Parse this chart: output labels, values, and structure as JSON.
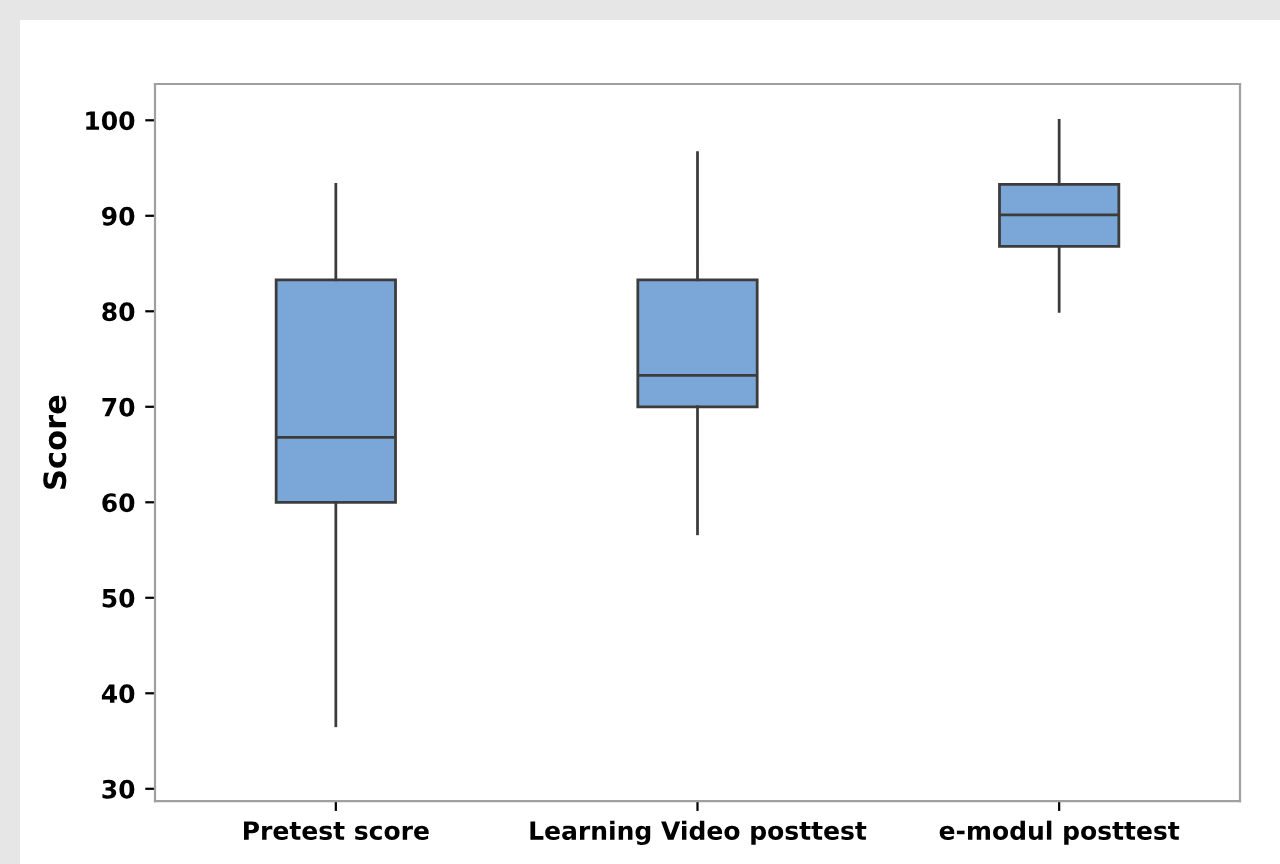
{
  "chart_data": {
    "type": "box",
    "ylabel": "Score",
    "categories": [
      "Pretest score",
      "Learning Video posttest",
      "e-modul posttest"
    ],
    "color": "#7ba7d8",
    "boxes": [
      {
        "low": 36.6,
        "q1": 60,
        "median": 66.8,
        "q3": 83.3,
        "high": 93.3
      },
      {
        "low": 56.7,
        "q1": 70,
        "median": 73.3,
        "q3": 83.3,
        "high": 96.6
      },
      {
        "low": 80,
        "q1": 86.8,
        "median": 90.1,
        "q3": 93.3,
        "high": 100
      }
    ],
    "ylim": [
      28.7,
      103.8
    ],
    "yticks": [
      30,
      40,
      50,
      60,
      70,
      80,
      90,
      100
    ],
    "grid": false
  }
}
